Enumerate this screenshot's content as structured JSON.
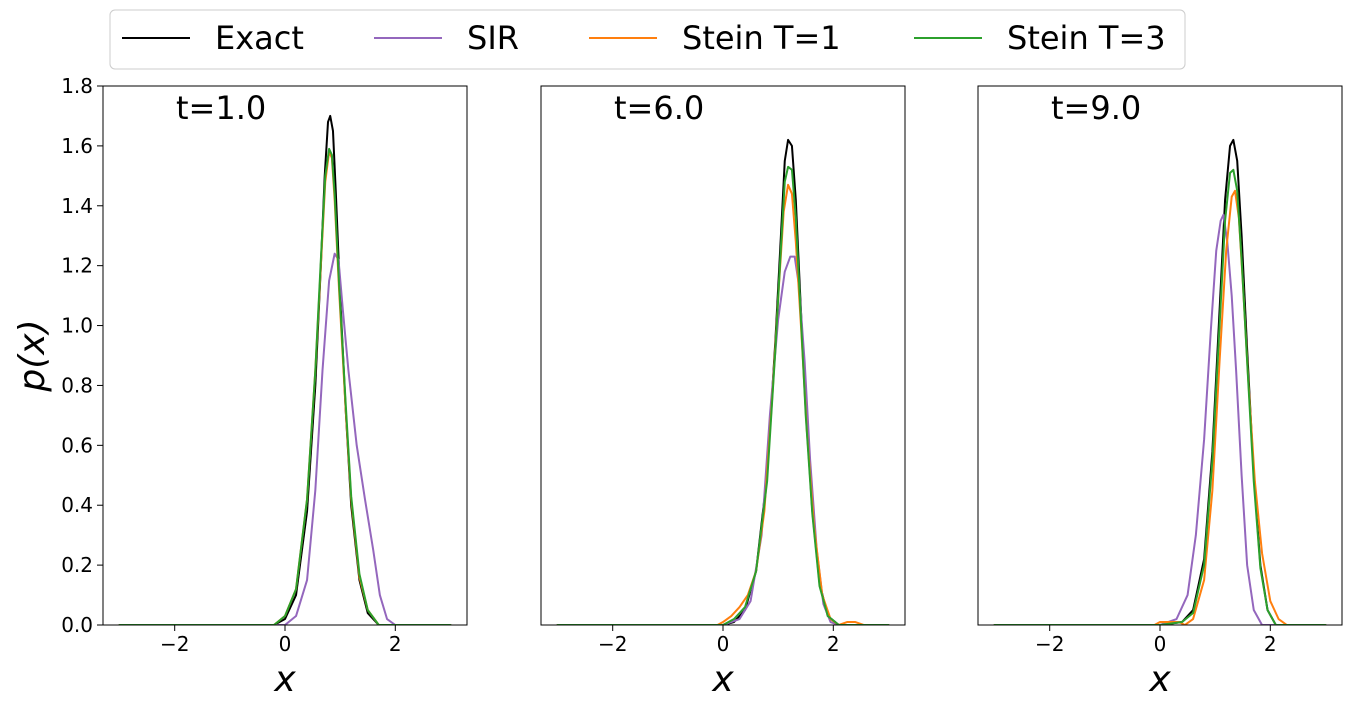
{
  "legend": {
    "placement": "top-center",
    "entries": [
      {
        "label": "Exact",
        "color": "#000000"
      },
      {
        "label": "SIR",
        "color": "#9467bd"
      },
      {
        "label": "Stein T=1",
        "color": "#ff7f0e"
      },
      {
        "label": "Stein T=3",
        "color": "#2ca02c"
      }
    ]
  },
  "chart_data": [
    {
      "type": "line",
      "annotation": "t=1.0",
      "xlabel": "x",
      "ylabel": "p(x)",
      "xlim": [
        -3.3,
        3.3
      ],
      "ylim": [
        0,
        1.8
      ],
      "xticks": [
        -2,
        0,
        2
      ],
      "xtick_labels": [
        "−2",
        "0",
        "2"
      ],
      "yticks": [
        0,
        0.2,
        0.4,
        0.6,
        0.8,
        1.0,
        1.2,
        1.4,
        1.6,
        1.8
      ],
      "ytick_labels": [
        "0.0",
        "0.2",
        "0.4",
        "0.6",
        "0.8",
        "1.0",
        "1.2",
        "1.4",
        "1.6",
        "1.8"
      ],
      "grid": false,
      "series": [
        {
          "name": "Exact",
          "color": "#000000",
          "points": [
            [
              -3,
              0
            ],
            [
              -1,
              0
            ],
            [
              -0.2,
              0
            ],
            [
              0,
              0.02
            ],
            [
              0.2,
              0.1
            ],
            [
              0.4,
              0.38
            ],
            [
              0.55,
              0.8
            ],
            [
              0.65,
              1.2
            ],
            [
              0.72,
              1.5
            ],
            [
              0.78,
              1.68
            ],
            [
              0.82,
              1.7
            ],
            [
              0.87,
              1.65
            ],
            [
              0.92,
              1.45
            ],
            [
              1.0,
              1.1
            ],
            [
              1.1,
              0.72
            ],
            [
              1.2,
              0.4
            ],
            [
              1.35,
              0.15
            ],
            [
              1.5,
              0.04
            ],
            [
              1.7,
              0
            ],
            [
              3,
              0
            ]
          ]
        },
        {
          "name": "SIR",
          "color": "#9467bd",
          "points": [
            [
              -3,
              0
            ],
            [
              -1,
              0
            ],
            [
              0,
              0
            ],
            [
              0.2,
              0.03
            ],
            [
              0.4,
              0.15
            ],
            [
              0.55,
              0.45
            ],
            [
              0.68,
              0.85
            ],
            [
              0.8,
              1.15
            ],
            [
              0.9,
              1.24
            ],
            [
              0.97,
              1.22
            ],
            [
              1.05,
              1.05
            ],
            [
              1.15,
              0.85
            ],
            [
              1.3,
              0.6
            ],
            [
              1.45,
              0.42
            ],
            [
              1.6,
              0.25
            ],
            [
              1.72,
              0.1
            ],
            [
              1.85,
              0.02
            ],
            [
              2.0,
              0
            ],
            [
              3,
              0
            ]
          ]
        },
        {
          "name": "Stein T=1",
          "color": "#ff7f0e",
          "points": [
            [
              -3,
              0
            ],
            [
              -1,
              0
            ],
            [
              -0.2,
              0
            ],
            [
              0,
              0.03
            ],
            [
              0.2,
              0.12
            ],
            [
              0.4,
              0.42
            ],
            [
              0.55,
              0.85
            ],
            [
              0.65,
              1.2
            ],
            [
              0.73,
              1.48
            ],
            [
              0.8,
              1.58
            ],
            [
              0.85,
              1.56
            ],
            [
              0.9,
              1.42
            ],
            [
              0.98,
              1.12
            ],
            [
              1.1,
              0.72
            ],
            [
              1.2,
              0.42
            ],
            [
              1.35,
              0.16
            ],
            [
              1.5,
              0.05
            ],
            [
              1.7,
              0
            ],
            [
              3,
              0
            ]
          ]
        },
        {
          "name": "Stein T=3",
          "color": "#2ca02c",
          "points": [
            [
              -3,
              0
            ],
            [
              -1,
              0
            ],
            [
              -0.2,
              0
            ],
            [
              0,
              0.03
            ],
            [
              0.2,
              0.12
            ],
            [
              0.4,
              0.42
            ],
            [
              0.55,
              0.85
            ],
            [
              0.65,
              1.22
            ],
            [
              0.73,
              1.5
            ],
            [
              0.8,
              1.59
            ],
            [
              0.85,
              1.57
            ],
            [
              0.9,
              1.44
            ],
            [
              0.98,
              1.14
            ],
            [
              1.1,
              0.74
            ],
            [
              1.2,
              0.43
            ],
            [
              1.35,
              0.17
            ],
            [
              1.5,
              0.05
            ],
            [
              1.7,
              0
            ],
            [
              3,
              0
            ]
          ]
        }
      ]
    },
    {
      "type": "line",
      "annotation": "t=6.0",
      "xlabel": "x",
      "ylabel": "",
      "xlim": [
        -3.3,
        3.3
      ],
      "ylim": [
        0,
        1.8
      ],
      "xticks": [
        -2,
        0,
        2
      ],
      "xtick_labels": [
        "−2",
        "0",
        "2"
      ],
      "yticks": [],
      "ytick_labels": [],
      "grid": false,
      "series": [
        {
          "name": "Exact",
          "color": "#000000",
          "points": [
            [
              -3,
              0
            ],
            [
              -1,
              0
            ],
            [
              0,
              0
            ],
            [
              0.2,
              0.01
            ],
            [
              0.4,
              0.05
            ],
            [
              0.6,
              0.18
            ],
            [
              0.8,
              0.5
            ],
            [
              0.95,
              0.95
            ],
            [
              1.05,
              1.3
            ],
            [
              1.12,
              1.55
            ],
            [
              1.18,
              1.62
            ],
            [
              1.25,
              1.6
            ],
            [
              1.32,
              1.42
            ],
            [
              1.4,
              1.1
            ],
            [
              1.5,
              0.72
            ],
            [
              1.62,
              0.38
            ],
            [
              1.75,
              0.14
            ],
            [
              1.9,
              0.03
            ],
            [
              2.1,
              0
            ],
            [
              3,
              0
            ]
          ]
        },
        {
          "name": "SIR",
          "color": "#9467bd",
          "points": [
            [
              -3,
              0
            ],
            [
              -1,
              0
            ],
            [
              0,
              0
            ],
            [
              0.3,
              0.02
            ],
            [
              0.5,
              0.08
            ],
            [
              0.7,
              0.3
            ],
            [
              0.85,
              0.7
            ],
            [
              1.0,
              1.02
            ],
            [
              1.12,
              1.18
            ],
            [
              1.22,
              1.23
            ],
            [
              1.3,
              1.23
            ],
            [
              1.38,
              1.13
            ],
            [
              1.48,
              0.88
            ],
            [
              1.58,
              0.55
            ],
            [
              1.7,
              0.25
            ],
            [
              1.82,
              0.07
            ],
            [
              1.95,
              0.01
            ],
            [
              2.1,
              0
            ],
            [
              3,
              0
            ]
          ]
        },
        {
          "name": "Stein T=1",
          "color": "#ff7f0e",
          "points": [
            [
              -3,
              0
            ],
            [
              -1,
              0
            ],
            [
              -0.1,
              0
            ],
            [
              0,
              0.01
            ],
            [
              0.15,
              0.03
            ],
            [
              0.3,
              0.06
            ],
            [
              0.45,
              0.1
            ],
            [
              0.6,
              0.18
            ],
            [
              0.75,
              0.38
            ],
            [
              0.9,
              0.78
            ],
            [
              1.02,
              1.15
            ],
            [
              1.1,
              1.38
            ],
            [
              1.18,
              1.47
            ],
            [
              1.25,
              1.44
            ],
            [
              1.32,
              1.28
            ],
            [
              1.42,
              0.98
            ],
            [
              1.52,
              0.65
            ],
            [
              1.65,
              0.33
            ],
            [
              1.8,
              0.1
            ],
            [
              1.95,
              0.02
            ],
            [
              2.1,
              0
            ],
            [
              2.25,
              0.01
            ],
            [
              2.4,
              0.01
            ],
            [
              2.55,
              0
            ],
            [
              3,
              0
            ]
          ]
        },
        {
          "name": "Stein T=3",
          "color": "#2ca02c",
          "points": [
            [
              -3,
              0
            ],
            [
              -1,
              0
            ],
            [
              0,
              0
            ],
            [
              0.2,
              0.02
            ],
            [
              0.4,
              0.06
            ],
            [
              0.6,
              0.18
            ],
            [
              0.8,
              0.48
            ],
            [
              0.95,
              0.92
            ],
            [
              1.05,
              1.26
            ],
            [
              1.12,
              1.48
            ],
            [
              1.18,
              1.53
            ],
            [
              1.25,
              1.52
            ],
            [
              1.32,
              1.36
            ],
            [
              1.4,
              1.07
            ],
            [
              1.5,
              0.7
            ],
            [
              1.62,
              0.37
            ],
            [
              1.75,
              0.13
            ],
            [
              1.9,
              0.03
            ],
            [
              2.1,
              0
            ],
            [
              3,
              0
            ]
          ]
        }
      ]
    },
    {
      "type": "line",
      "annotation": "t=9.0",
      "xlabel": "x",
      "ylabel": "",
      "xlim": [
        -3.3,
        3.3
      ],
      "ylim": [
        0,
        1.8
      ],
      "xticks": [
        -2,
        0,
        2
      ],
      "xtick_labels": [
        "−2",
        "0",
        "2"
      ],
      "yticks": [],
      "ytick_labels": [],
      "grid": false,
      "series": [
        {
          "name": "Exact",
          "color": "#000000",
          "points": [
            [
              -3,
              0
            ],
            [
              -1,
              0
            ],
            [
              0,
              0
            ],
            [
              0.4,
              0.01
            ],
            [
              0.6,
              0.05
            ],
            [
              0.8,
              0.22
            ],
            [
              0.95,
              0.58
            ],
            [
              1.08,
              1.05
            ],
            [
              1.18,
              1.42
            ],
            [
              1.27,
              1.6
            ],
            [
              1.33,
              1.62
            ],
            [
              1.4,
              1.55
            ],
            [
              1.48,
              1.3
            ],
            [
              1.58,
              0.92
            ],
            [
              1.7,
              0.5
            ],
            [
              1.82,
              0.2
            ],
            [
              1.95,
              0.05
            ],
            [
              2.1,
              0
            ],
            [
              3,
              0
            ]
          ]
        },
        {
          "name": "SIR",
          "color": "#9467bd",
          "points": [
            [
              -3,
              0
            ],
            [
              -1,
              0
            ],
            [
              0,
              0
            ],
            [
              0.3,
              0.02
            ],
            [
              0.5,
              0.1
            ],
            [
              0.65,
              0.3
            ],
            [
              0.8,
              0.62
            ],
            [
              0.92,
              0.98
            ],
            [
              1.02,
              1.25
            ],
            [
              1.1,
              1.35
            ],
            [
              1.15,
              1.37
            ],
            [
              1.22,
              1.28
            ],
            [
              1.3,
              1.1
            ],
            [
              1.38,
              0.85
            ],
            [
              1.48,
              0.5
            ],
            [
              1.58,
              0.2
            ],
            [
              1.7,
              0.05
            ],
            [
              1.85,
              0
            ],
            [
              3,
              0
            ]
          ]
        },
        {
          "name": "Stein T=1",
          "color": "#ff7f0e",
          "points": [
            [
              -3,
              0
            ],
            [
              -1,
              0
            ],
            [
              -0.1,
              0
            ],
            [
              0,
              0.01
            ],
            [
              0.2,
              0.01
            ],
            [
              0.35,
              0.01
            ],
            [
              0.45,
              0
            ],
            [
              0.6,
              0.02
            ],
            [
              0.8,
              0.15
            ],
            [
              0.95,
              0.45
            ],
            [
              1.08,
              0.88
            ],
            [
              1.2,
              1.25
            ],
            [
              1.3,
              1.43
            ],
            [
              1.36,
              1.45
            ],
            [
              1.43,
              1.36
            ],
            [
              1.5,
              1.15
            ],
            [
              1.6,
              0.82
            ],
            [
              1.72,
              0.48
            ],
            [
              1.85,
              0.24
            ],
            [
              2.0,
              0.08
            ],
            [
              2.15,
              0.02
            ],
            [
              2.3,
              0
            ],
            [
              3,
              0
            ]
          ]
        },
        {
          "name": "Stein T=3",
          "color": "#2ca02c",
          "points": [
            [
              -3,
              0
            ],
            [
              -1,
              0
            ],
            [
              0,
              0
            ],
            [
              0.4,
              0.01
            ],
            [
              0.6,
              0.04
            ],
            [
              0.8,
              0.2
            ],
            [
              0.95,
              0.55
            ],
            [
              1.08,
              1.0
            ],
            [
              1.18,
              1.35
            ],
            [
              1.27,
              1.51
            ],
            [
              1.33,
              1.52
            ],
            [
              1.4,
              1.45
            ],
            [
              1.48,
              1.22
            ],
            [
              1.58,
              0.88
            ],
            [
              1.7,
              0.48
            ],
            [
              1.82,
              0.19
            ],
            [
              1.95,
              0.05
            ],
            [
              2.1,
              0
            ],
            [
              3,
              0
            ]
          ]
        }
      ]
    }
  ]
}
